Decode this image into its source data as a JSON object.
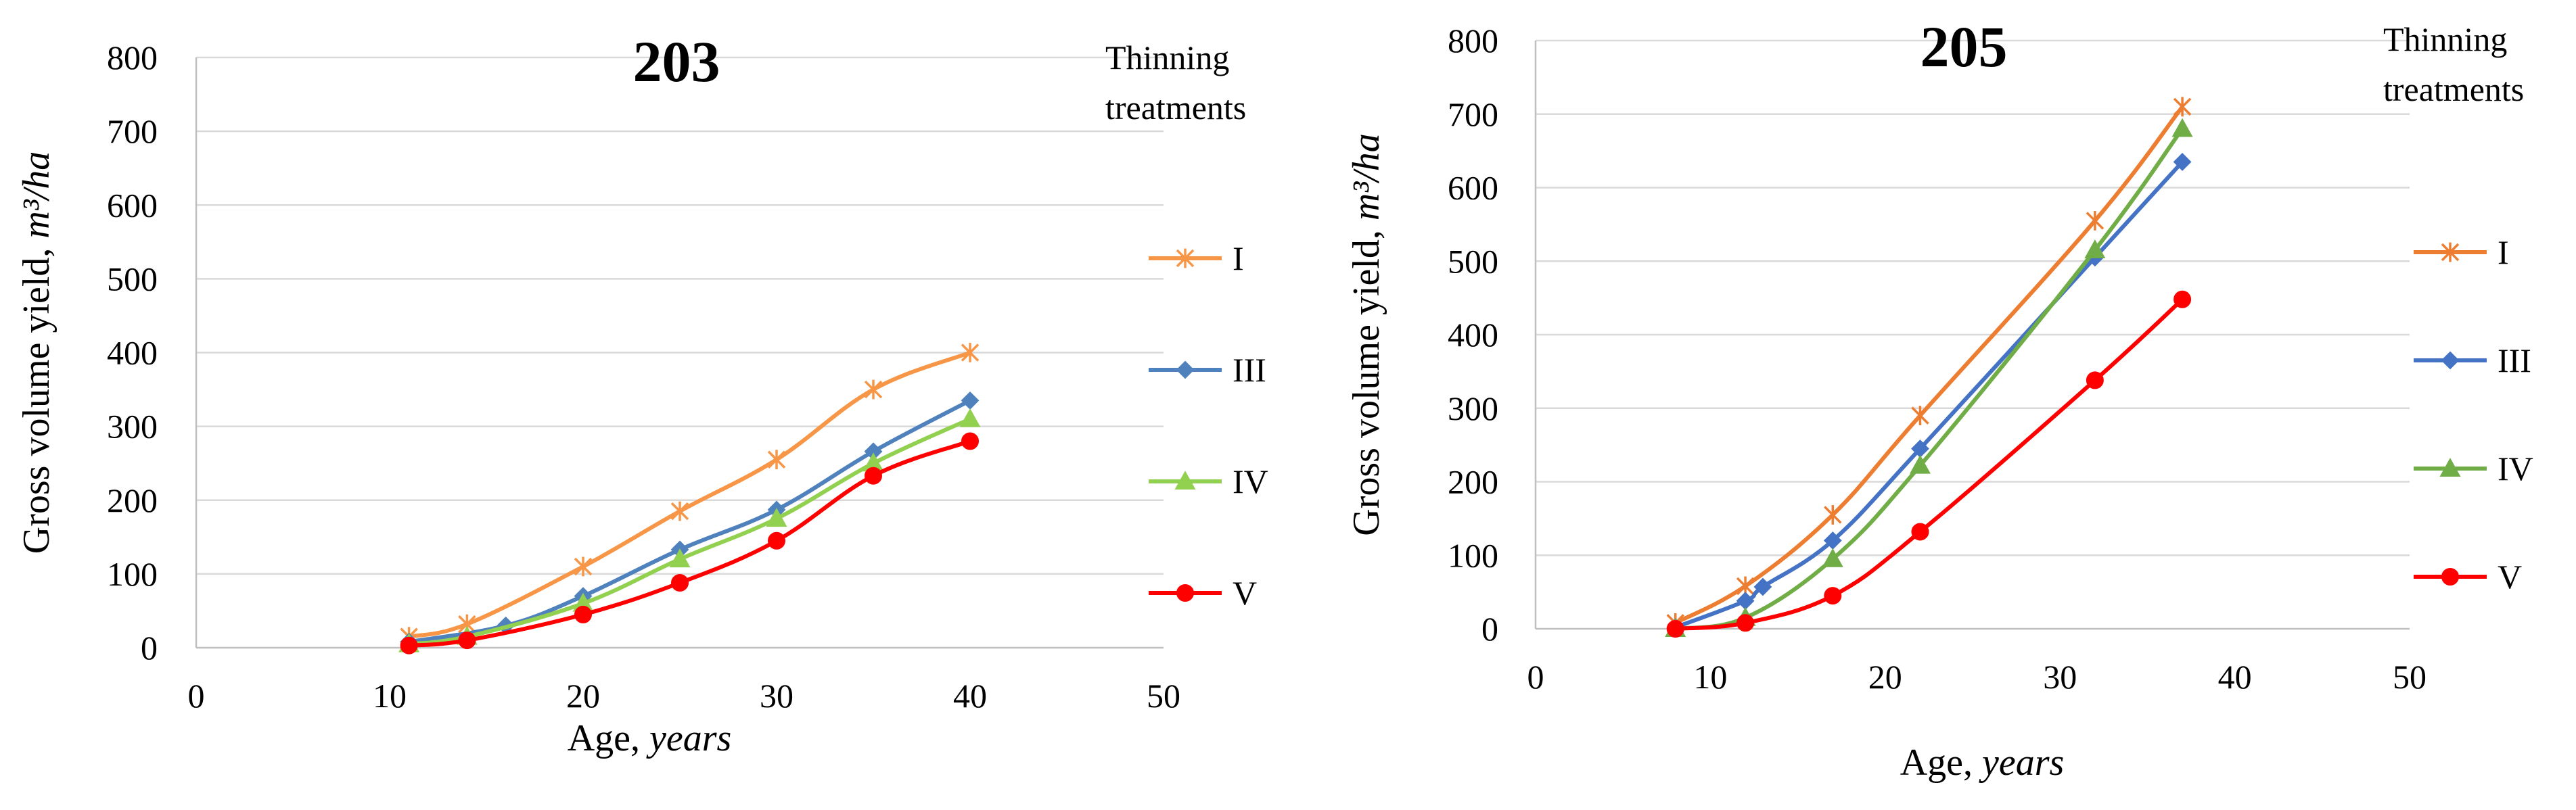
{
  "chart_data": [
    {
      "type": "line",
      "title": "203",
      "xlabel": "Age,",
      "xlabel_unit": "years",
      "ylabel": "Gross volume yield,",
      "ylabel_unit": "m³/ha",
      "xlim": [
        0,
        50
      ],
      "ylim": [
        0,
        800
      ],
      "xticks": [
        0,
        10,
        20,
        30,
        40,
        50
      ],
      "yticks": [
        0,
        100,
        200,
        300,
        400,
        500,
        600,
        700,
        800
      ],
      "grid": "horizontal",
      "legend_title_line1": "Thinning",
      "legend_title_line2": "treatments",
      "legend_position": "right",
      "series": [
        {
          "name": "I",
          "color": "#F79646",
          "marker": "star",
          "x": [
            11,
            14,
            20,
            25,
            30,
            35,
            40
          ],
          "y": [
            15,
            32,
            110,
            185,
            255,
            350,
            400
          ]
        },
        {
          "name": "III",
          "color": "#4F81BD",
          "marker": "diamond",
          "x": [
            11,
            16,
            20,
            25,
            30,
            35,
            40
          ],
          "y": [
            8,
            30,
            70,
            133,
            187,
            266,
            335
          ]
        },
        {
          "name": "IV",
          "color": "#92D050",
          "marker": "triangle",
          "x": [
            11,
            14,
            20,
            25,
            30,
            35,
            40
          ],
          "y": [
            5,
            15,
            60,
            120,
            175,
            250,
            310
          ]
        },
        {
          "name": "V",
          "color": "#FF0000",
          "marker": "circle",
          "x": [
            11,
            14,
            20,
            25,
            30,
            35,
            40
          ],
          "y": [
            3,
            10,
            45,
            88,
            145,
            233,
            280
          ]
        }
      ]
    },
    {
      "type": "line",
      "title": "205",
      "xlabel": "Age,",
      "xlabel_unit": "years",
      "ylabel": "Gross volume yield,",
      "ylabel_unit": "m³/ha",
      "xlim": [
        0,
        50
      ],
      "ylim": [
        0,
        800
      ],
      "xticks": [
        0,
        10,
        20,
        30,
        40,
        50
      ],
      "yticks": [
        0,
        100,
        200,
        300,
        400,
        500,
        600,
        700,
        800
      ],
      "grid": "horizontal",
      "legend_title_line1": "Thinning",
      "legend_title_line2": "treatments",
      "legend_position": "right",
      "series": [
        {
          "name": "I",
          "color": "#ED7D31",
          "marker": "star",
          "x": [
            8,
            12,
            17,
            22,
            32,
            37
          ],
          "y": [
            8,
            58,
            155,
            290,
            555,
            710
          ]
        },
        {
          "name": "III",
          "color": "#4472C4",
          "marker": "diamond",
          "x": [
            8,
            12,
            13,
            17,
            22,
            32,
            37
          ],
          "y": [
            2,
            38,
            57,
            120,
            245,
            505,
            635
          ]
        },
        {
          "name": "IV",
          "color": "#70AD47",
          "marker": "triangle",
          "x": [
            8,
            12,
            17,
            22,
            32,
            37
          ],
          "y": [
            0,
            15,
            95,
            222,
            515,
            680
          ]
        },
        {
          "name": "V",
          "color": "#FF0000",
          "marker": "circle",
          "x": [
            8,
            12,
            17,
            22,
            32,
            37
          ],
          "y": [
            0,
            8,
            45,
            132,
            338,
            448
          ]
        }
      ]
    }
  ]
}
